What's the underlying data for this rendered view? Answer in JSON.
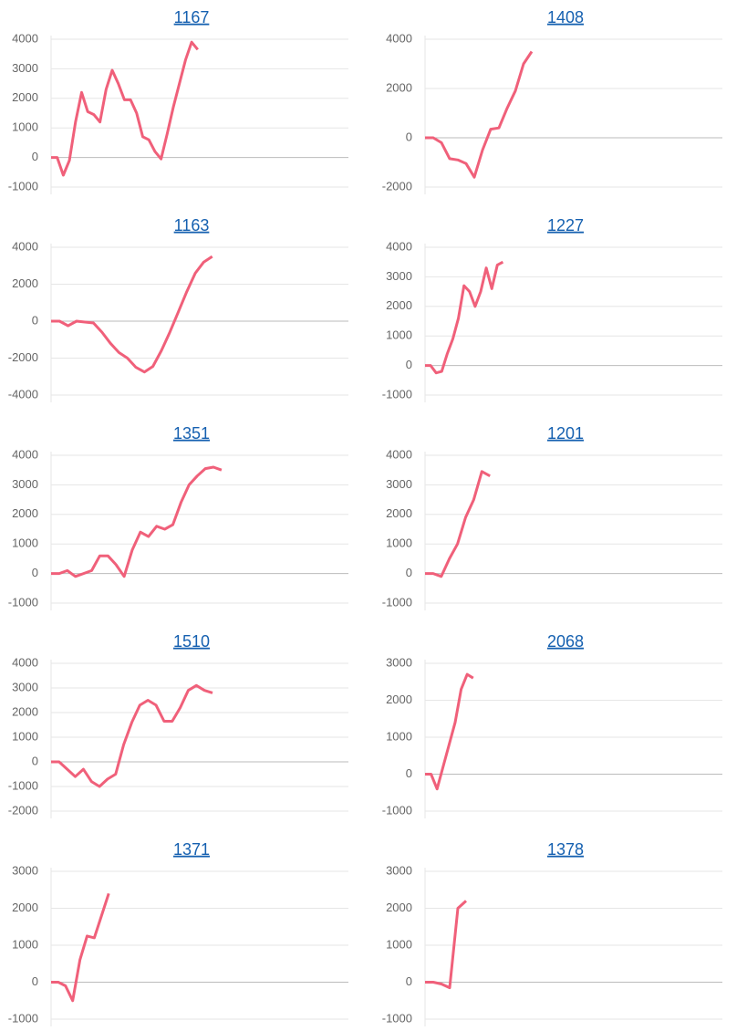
{
  "chart_data": [
    {
      "type": "line",
      "title": "1167",
      "color": "#f0607a",
      "ylim": [
        -1000,
        4000
      ],
      "yticks": [
        -1000,
        0,
        1000,
        2000,
        3000,
        4000
      ],
      "values": [
        0,
        0,
        -600,
        -100,
        1200,
        2200,
        1550,
        1450,
        1200,
        2300,
        2950,
        2500,
        1950,
        1950,
        1500,
        700,
        600,
        200,
        -50,
        800,
        1700,
        2500,
        3300,
        3900,
        3650
      ]
    },
    {
      "type": "line",
      "title": "1408",
      "color": "#f0607a",
      "ylim": [
        -2000,
        4000
      ],
      "yticks": [
        -2000,
        0,
        2000,
        4000
      ],
      "values": [
        0,
        0,
        -200,
        -850,
        -900,
        -1050,
        -1600,
        -500,
        350,
        400,
        1200,
        1900,
        3000,
        3500
      ]
    },
    {
      "type": "line",
      "title": "1163",
      "color": "#f0607a",
      "ylim": [
        -4000,
        4000
      ],
      "yticks": [
        -4000,
        -2000,
        0,
        2000,
        4000
      ],
      "values": [
        0,
        0,
        -250,
        0,
        -50,
        -100,
        -600,
        -1200,
        -1700,
        -2000,
        -2500,
        -2750,
        -2450,
        -1600,
        -600,
        500,
        1600,
        2600,
        3200,
        3500
      ]
    },
    {
      "type": "line",
      "title": "1227",
      "color": "#f0607a",
      "ylim": [
        -1000,
        4000
      ],
      "yticks": [
        -1000,
        0,
        1000,
        2000,
        3000,
        4000
      ],
      "values": [
        0,
        0,
        -250,
        -200,
        400,
        900,
        1600,
        2700,
        2500,
        2000,
        2500,
        3300,
        2600,
        3400,
        3500
      ]
    },
    {
      "type": "line",
      "title": "1351",
      "color": "#f0607a",
      "ylim": [
        -1000,
        4000
      ],
      "yticks": [
        -1000,
        0,
        1000,
        2000,
        3000,
        4000
      ],
      "values": [
        0,
        0,
        100,
        -100,
        0,
        100,
        600,
        600,
        300,
        -100,
        800,
        1400,
        1250,
        1600,
        1500,
        1650,
        2400,
        3000,
        3300,
        3550,
        3600,
        3500
      ]
    },
    {
      "type": "line",
      "title": "1201",
      "color": "#f0607a",
      "ylim": [
        -1000,
        4000
      ],
      "yticks": [
        -1000,
        0,
        1000,
        2000,
        3000,
        4000
      ],
      "values": [
        0,
        0,
        -100,
        500,
        1000,
        1900,
        2500,
        3450,
        3300
      ]
    },
    {
      "type": "line",
      "title": "1510",
      "color": "#f0607a",
      "ylim": [
        -2000,
        4000
      ],
      "yticks": [
        -2000,
        -1000,
        0,
        1000,
        2000,
        3000,
        4000
      ],
      "values": [
        0,
        0,
        -300,
        -600,
        -300,
        -800,
        -1000,
        -700,
        -500,
        700,
        1600,
        2300,
        2500,
        2300,
        1650,
        1650,
        2200,
        2900,
        3100,
        2900,
        2800
      ]
    },
    {
      "type": "line",
      "title": "2068",
      "color": "#f0607a",
      "ylim": [
        -1000,
        3000
      ],
      "yticks": [
        -1000,
        0,
        1000,
        2000,
        3000
      ],
      "values": [
        0,
        0,
        -400,
        200,
        800,
        1400,
        2300,
        2700,
        2600
      ]
    },
    {
      "type": "line",
      "title": "1371",
      "color": "#f0607a",
      "ylim": [
        -1000,
        3000
      ],
      "yticks": [
        -1000,
        0,
        1000,
        2000,
        3000
      ],
      "values": [
        0,
        0,
        -100,
        -500,
        600,
        1250,
        1200,
        1800,
        2400
      ]
    },
    {
      "type": "line",
      "title": "1378",
      "color": "#f0607a",
      "ylim": [
        -1000,
        3000
      ],
      "yticks": [
        -1000,
        0,
        1000,
        2000,
        3000
      ],
      "values": [
        0,
        0,
        -50,
        -150,
        2000,
        2200
      ]
    }
  ]
}
